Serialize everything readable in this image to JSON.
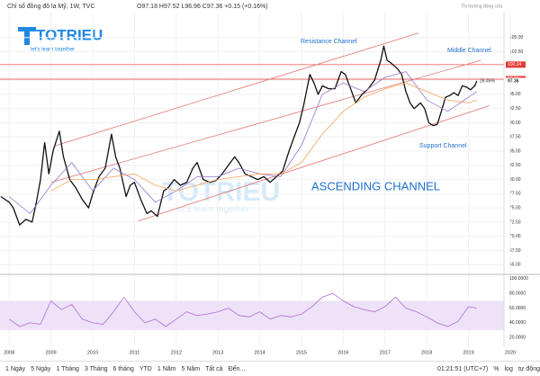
{
  "header": {
    "symbol": "Chỉ số đồng đô la Mỹ, 1W, TVC",
    "ohlc": "O97.18 H97.52 L96.96 C97.36 +0.15 (+0.16%)",
    "status": "Thị trường đóng cửa"
  },
  "logo": {
    "name": "TOTRIEU",
    "slogan": "let's learn together"
  },
  "chart_data": [
    {
      "type": "line",
      "title": "ASCENDING CHANNEL",
      "grid": true,
      "xlim": [
        2007.78,
        2019.85
      ],
      "xticks": [
        2008,
        2009,
        2010,
        2011,
        2012,
        2013,
        2014,
        2015,
        2016,
        2017,
        2018,
        2019,
        2020
      ],
      "ylim": [
        63.3,
        109.4
      ],
      "yticks": [
        {
          "value": 65,
          "label": "65.00"
        },
        {
          "value": 67.5,
          "label": "67.50"
        },
        {
          "value": 70,
          "label": "70.00"
        },
        {
          "value": 72.5,
          "label": "72.50"
        },
        {
          "value": 75,
          "label": "75.00"
        },
        {
          "value": 77.5,
          "label": "77.50"
        },
        {
          "value": 80,
          "label": "80.00"
        },
        {
          "value": 82.5,
          "label": "82.50"
        },
        {
          "value": 85,
          "label": "85.00"
        },
        {
          "value": 87.5,
          "label": "87.50"
        },
        {
          "value": 90,
          "label": "90.00"
        },
        {
          "value": 92.5,
          "label": "92.50"
        },
        {
          "value": 95,
          "label": "95.00"
        },
        {
          "value": 97.5,
          "label": "97.50"
        },
        {
          "value": 100,
          "label": "100.00"
        },
        {
          "value": 102.5,
          "label": "102.50"
        },
        {
          "value": 105,
          "label": "105.00"
        }
      ],
      "series": [
        {
          "color": "#111111",
          "x": [
            2007.8,
            2008.0,
            2008.1,
            2008.25,
            2008.4,
            2008.55,
            2008.65,
            2008.75,
            2008.85,
            2008.95,
            2009.05,
            2009.2,
            2009.3,
            2009.45,
            2009.6,
            2009.75,
            2009.9,
            2010.0,
            2010.15,
            2010.3,
            2010.45,
            2010.55,
            2010.65,
            2010.8,
            2010.9,
            2011.0,
            2011.15,
            2011.3,
            2011.4,
            2011.55,
            2011.7,
            2011.8,
            2011.95,
            2012.1,
            2012.25,
            2012.4,
            2012.5,
            2012.65,
            2012.8,
            2012.95,
            2013.1,
            2013.25,
            2013.4,
            2013.5,
            2013.65,
            2013.8,
            2013.95,
            2014.1,
            2014.25,
            2014.4,
            2014.55,
            2014.7,
            2014.85,
            2014.95,
            2015.05,
            2015.2,
            2015.3,
            2015.4,
            2015.5,
            2015.65,
            2015.8,
            2015.95,
            2016.05,
            2016.2,
            2016.3,
            2016.45,
            2016.6,
            2016.75,
            2016.9,
            2016.97,
            2017.05,
            2017.15,
            2017.3,
            2017.4,
            2017.5,
            2017.6,
            2017.7,
            2017.85,
            2017.95,
            2018.05,
            2018.15,
            2018.25,
            2018.35,
            2018.45,
            2018.55,
            2018.65,
            2018.75,
            2018.85,
            2018.95,
            2019.05,
            2019.15,
            2019.2
          ],
          "values": [
            77,
            76,
            75,
            72,
            73,
            72.5,
            76,
            80,
            86.5,
            81,
            85,
            88.5,
            84,
            80,
            78.5,
            76.5,
            75,
            77.5,
            80.5,
            82,
            88,
            84,
            82,
            77,
            79,
            79.5,
            76.5,
            74,
            74.5,
            73.5,
            78,
            78.5,
            80,
            79,
            79.5,
            82,
            83,
            80,
            79.5,
            79.8,
            81,
            82.5,
            84,
            83,
            81,
            80.5,
            80,
            80.5,
            79.5,
            80.5,
            81.5,
            85,
            88,
            90,
            93,
            98.5,
            97,
            95,
            96.5,
            96,
            96,
            99,
            98.5,
            95.5,
            93.5,
            95,
            96,
            97.5,
            101,
            103.5,
            101,
            100.5,
            99.5,
            98.5,
            95.5,
            93.5,
            92.5,
            93.5,
            92.5,
            90,
            89.5,
            89.7,
            92,
            94.5,
            94.8,
            95.3,
            94.8,
            96.5,
            96.3,
            95.8,
            96.5,
            97.36
          ]
        },
        {
          "color": "#9575cd",
          "x": [
            2008.0,
            2008.5,
            2009.0,
            2009.5,
            2010.0,
            2010.5,
            2011.0,
            2011.5,
            2012.0,
            2012.5,
            2013.0,
            2013.5,
            2014.0,
            2014.5,
            2015.0,
            2015.5,
            2016.0,
            2016.5,
            2017.0,
            2017.5,
            2018.0,
            2018.5,
            2019.0,
            2019.2
          ],
          "values": [
            77,
            74,
            79,
            83,
            78,
            82,
            80,
            76,
            78,
            80.5,
            80.5,
            82,
            81,
            80.5,
            86,
            95,
            97,
            95.5,
            98,
            99,
            94,
            92,
            94.5,
            95.5
          ]
        },
        {
          "color": "#f5a35a",
          "x": [
            2009.0,
            2009.5,
            2010.0,
            2010.5,
            2011.0,
            2011.5,
            2012.0,
            2012.5,
            2013.0,
            2013.5,
            2014.0,
            2014.5,
            2015.0,
            2015.5,
            2016.0,
            2016.5,
            2017.0,
            2017.5,
            2018.0,
            2018.5,
            2019.0,
            2019.2
          ],
          "values": [
            78,
            80,
            80,
            80.5,
            81,
            79,
            78,
            79,
            80,
            80.5,
            81,
            81,
            83,
            88,
            92,
            94.5,
            96,
            97,
            95.5,
            94,
            93.5,
            94
          ]
        }
      ],
      "channels": [
        {
          "label": "Resistance Channel",
          "x": [
            2009.08,
            2017.8
          ],
          "y": [
            85.9,
            105.8
          ]
        },
        {
          "label": "Middle Channel",
          "x": [
            2009.0,
            2019.3
          ],
          "y": [
            79.5,
            101
          ]
        },
        {
          "label": "Support Channel",
          "x": [
            2011.1,
            2019.5
          ],
          "y": [
            72.7,
            93
          ]
        }
      ],
      "hlines": [
        100.24,
        97.68
      ],
      "last": 97.36,
      "change_note": "26.45%"
    },
    {
      "type": "line",
      "xlim": [
        2007.78,
        2019.85
      ],
      "ylim": [
        8,
        106
      ],
      "band": [
        30,
        70
      ],
      "yticks": [
        {
          "value": 20,
          "label": "20.0000"
        },
        {
          "value": 40,
          "label": "40.0000"
        },
        {
          "value": 60,
          "label": "60.0000"
        },
        {
          "value": 80,
          "label": "80.0000"
        },
        {
          "value": 100,
          "label": "100.0000"
        }
      ],
      "series": [
        {
          "color": "#b36ad8",
          "x": [
            2008.0,
            2008.25,
            2008.5,
            2008.75,
            2009.0,
            2009.25,
            2009.5,
            2009.75,
            2010.0,
            2010.25,
            2010.5,
            2010.75,
            2011.0,
            2011.25,
            2011.5,
            2011.75,
            2012.0,
            2012.25,
            2012.5,
            2012.75,
            2013.0,
            2013.25,
            2013.5,
            2013.75,
            2014.0,
            2014.25,
            2014.5,
            2014.75,
            2015.0,
            2015.25,
            2015.5,
            2015.75,
            2016.0,
            2016.25,
            2016.5,
            2016.75,
            2017.0,
            2017.25,
            2017.5,
            2017.75,
            2018.0,
            2018.25,
            2018.5,
            2018.75,
            2019.0,
            2019.2
          ],
          "values": [
            45,
            35,
            40,
            38,
            70,
            58,
            65,
            45,
            40,
            38,
            55,
            75,
            55,
            40,
            45,
            35,
            45,
            55,
            50,
            52,
            55,
            60,
            50,
            48,
            55,
            45,
            50,
            48,
            52,
            62,
            75,
            80,
            70,
            62,
            58,
            55,
            62,
            75,
            60,
            55,
            48,
            40,
            35,
            42,
            62,
            60
          ]
        }
      ]
    }
  ],
  "footer": {
    "ranges": [
      "1 Ngày",
      "5 Ngày",
      "1 Tháng",
      "3 Tháng",
      "6 tháng",
      "YTD",
      "1 Năm",
      "5 Năm",
      "Tất cả",
      "Đến..."
    ],
    "clock": "01:21:51 (UTC+7)",
    "options": [
      "%",
      "log",
      "tự động"
    ]
  }
}
